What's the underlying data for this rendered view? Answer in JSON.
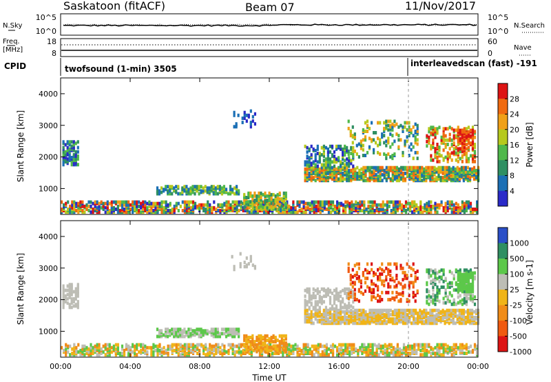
{
  "header": {
    "station": "Saskatoon (fitACF)",
    "beam": "Beam 07",
    "date": "11/Nov/2017"
  },
  "noise_panel": {
    "left_label": "N.Sky",
    "right_label": "N.Search",
    "left_ticks": [
      "10^5",
      "10^0"
    ],
    "right_ticks": [
      "10^5",
      "10^0"
    ]
  },
  "freq_panel": {
    "left_label": "Freq.",
    "left_unit": "[MHz]",
    "right_label": "Nave",
    "left_ticks": [
      "18",
      "8"
    ],
    "right_ticks": [
      "60",
      "0"
    ]
  },
  "cpid": {
    "label": "CPID",
    "segments": [
      {
        "name": "twofsound (1-min) 3505",
        "start_hour": 0
      },
      {
        "name": "interleavedscan (fast) -191",
        "start_hour": 20
      }
    ]
  },
  "chart_data": [
    {
      "type": "heatmap",
      "title": "Power",
      "ylabel": "Slant Range [km]",
      "xlabel": "Time UT",
      "ylim": [
        180,
        4500
      ],
      "yticks": [
        "1000",
        "2000",
        "3000",
        "4000"
      ],
      "xticks": [
        "00:00",
        "04:00",
        "08:00",
        "12:00",
        "16:00",
        "20:00",
        "00:00"
      ],
      "colorbar_label": "Power [dB]",
      "colorbar_ticks": [
        "4",
        "8",
        "12",
        "16",
        "20",
        "24",
        "28"
      ],
      "colors": [
        "#2a2ac8",
        "#1b6fb5",
        "#2f8f62",
        "#4fb84b",
        "#b6c91e",
        "#f0a018",
        "#f06a10",
        "#dd1414"
      ]
    },
    {
      "type": "heatmap",
      "title": "Velocity",
      "ylabel": "Slant Range [km]",
      "xlabel": "Time UT",
      "ylim": [
        180,
        4500
      ],
      "yticks": [
        "1000",
        "2000",
        "3000",
        "4000"
      ],
      "xticks": [
        "00:00",
        "04:00",
        "08:00",
        "12:00",
        "16:00",
        "20:00",
        "00:00"
      ],
      "colorbar_label": "Velocity [m s-1]",
      "colorbar_ticks": [
        "1000",
        "500",
        "100",
        "25",
        "-25",
        "-100",
        "-500",
        "-1000"
      ],
      "colors": [
        "#2a4fc8",
        "#2f8f62",
        "#5cc84a",
        "#bdbdb5",
        "#f0b418",
        "#f08c18",
        "#f05a10",
        "#dd1414"
      ]
    }
  ]
}
